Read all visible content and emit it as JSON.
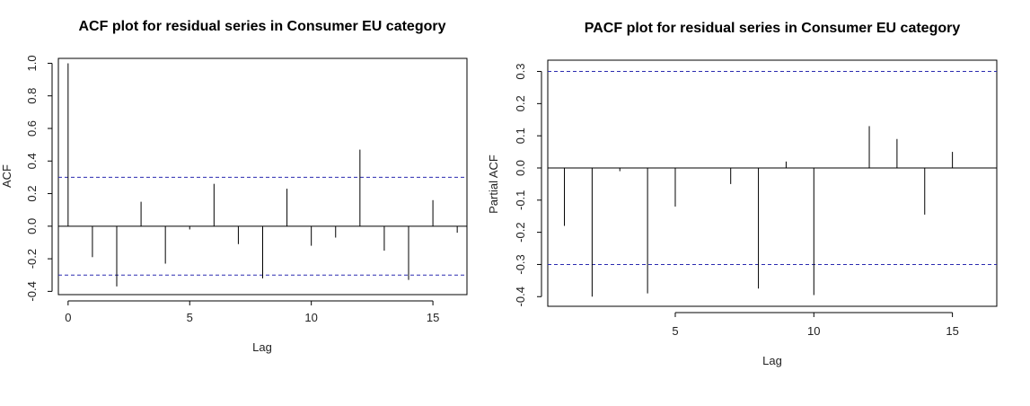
{
  "chart_data": [
    {
      "type": "bar",
      "title": "ACF plot for residual series in Consumer EU category",
      "xlabel": "Lag",
      "ylabel": "ACF",
      "xlim": [
        -0.4,
        16.4
      ],
      "ylim": [
        -0.42,
        1.03
      ],
      "xticks": [
        0,
        5,
        10,
        15
      ],
      "yticks": [
        -0.4,
        -0.2,
        0.0,
        0.2,
        0.4,
        0.6,
        0.8,
        1.0
      ],
      "ytick_labels": [
        "-0.4",
        "-0.2",
        "0.0",
        "0.2",
        "0.4",
        "0.6",
        "0.8",
        "1.0"
      ],
      "lags": [
        0,
        1,
        2,
        3,
        4,
        5,
        6,
        7,
        8,
        9,
        10,
        11,
        12,
        13,
        14,
        15,
        16
      ],
      "values": [
        1.0,
        -0.19,
        -0.37,
        0.15,
        -0.23,
        -0.02,
        0.26,
        -0.11,
        -0.32,
        0.23,
        -0.12,
        -0.07,
        0.47,
        -0.15,
        -0.33,
        0.16,
        -0.04
      ],
      "confidence_bounds": [
        0.3,
        -0.3
      ],
      "grid": false,
      "legend": "none"
    },
    {
      "type": "bar",
      "title": "PACF plot for residual series in Consumer EU category",
      "xlabel": "Lag",
      "ylabel": "Partial ACF",
      "xlim": [
        0.4,
        16.6
      ],
      "ylim": [
        -0.43,
        0.335
      ],
      "xticks": [
        5,
        10,
        15
      ],
      "yticks": [
        -0.4,
        -0.3,
        -0.2,
        -0.1,
        0.0,
        0.1,
        0.2,
        0.3
      ],
      "ytick_labels": [
        "-0.4",
        "-0.3",
        "-0.2",
        "-0.1",
        "0.0",
        "0.1",
        "0.2",
        "0.3"
      ],
      "lags": [
        1,
        2,
        3,
        4,
        5,
        6,
        7,
        8,
        9,
        10,
        11,
        12,
        13,
        14,
        15
      ],
      "values": [
        -0.18,
        -0.4,
        -0.01,
        -0.39,
        -0.12,
        0.0,
        -0.05,
        -0.375,
        0.02,
        -0.395,
        0.0,
        0.13,
        0.09,
        -0.145,
        0.05
      ],
      "confidence_bounds": [
        0.3,
        -0.3
      ],
      "grid": false,
      "legend": "none"
    }
  ],
  "colors": {
    "confidence_line": "#2b2bb0",
    "bar": "#000000",
    "frame": "#000000"
  }
}
